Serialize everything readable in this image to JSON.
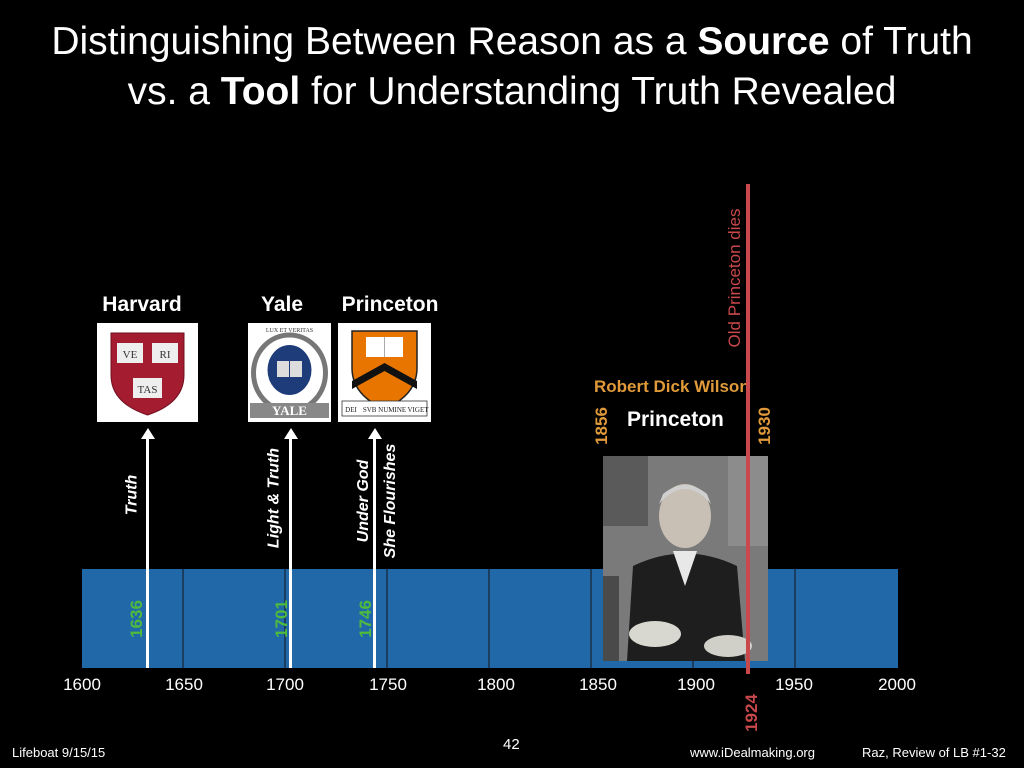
{
  "title": {
    "line1_pre": "Distinguishing Between Reason as a ",
    "line1_bold": "Source",
    "line1_post": " of Truth",
    "line2_pre": "vs. a ",
    "line2_bold": "Tool",
    "line2_post": " for Understanding Truth Revealed"
  },
  "universities": [
    {
      "name": "Harvard",
      "year": "1636",
      "motto": "Truth",
      "crest_text": [
        "VE",
        "RI",
        "TAS"
      ],
      "color": "#a41c30"
    },
    {
      "name": "Yale",
      "year": "1701",
      "motto": "Light & Truth",
      "crest_text": [
        "LUX ET VERITAS",
        "YALE"
      ],
      "color": "#1f3c7a"
    },
    {
      "name": "Princeton",
      "year": "1746",
      "motto_line1": "Under God",
      "motto_line2": "She Flourishes",
      "crest_text": [
        "DEI",
        "SVB NUMINE",
        "VIGET"
      ],
      "color": "#e77500"
    }
  ],
  "axis_ticks": [
    "1600",
    "1650",
    "1700",
    "1750",
    "1800",
    "1850",
    "1900",
    "1950",
    "2000"
  ],
  "death_marker": {
    "label": "Old Princeton dies",
    "year": "1924",
    "color": "#c9484b"
  },
  "person": {
    "name": "Robert Dick Wilson",
    "birth": "1856",
    "death": "1930",
    "school": "Princeton",
    "color": "#e09a3a"
  },
  "footer": {
    "left": "Lifeboat 9/15/15",
    "center": "42",
    "website": "www.iDealmaking.org",
    "right": "Raz, Review of LB #1-32"
  },
  "colors": {
    "band": "#2168a9",
    "year_green": "#4fbb3c",
    "background": "#000000"
  }
}
